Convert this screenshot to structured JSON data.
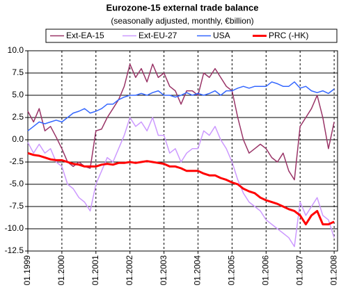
{
  "chart_data": {
    "type": "line",
    "title": "Eurozone-15 external trade balance",
    "subtitle": "(seasonally adjusted, monthly, €billion)",
    "x": [
      1999,
      1999.167,
      1999.333,
      1999.5,
      1999.667,
      1999.833,
      2000,
      2000.167,
      2000.333,
      2000.5,
      2000.667,
      2000.833,
      2001,
      2001.167,
      2001.333,
      2001.5,
      2001.667,
      2001.833,
      2002,
      2002.167,
      2002.333,
      2002.5,
      2002.667,
      2002.833,
      2003,
      2003.167,
      2003.333,
      2003.5,
      2003.667,
      2003.833,
      2004,
      2004.167,
      2004.333,
      2004.5,
      2004.667,
      2004.833,
      2005,
      2005.167,
      2005.333,
      2005.5,
      2005.667,
      2005.833,
      2006,
      2006.167,
      2006.333,
      2006.5,
      2006.667,
      2006.833,
      2007,
      2007.167,
      2007.333,
      2007.5,
      2007.667,
      2007.833,
      2008
    ],
    "series": [
      {
        "name": "Ext-EA-15",
        "color": "#993366",
        "width": 1.5,
        "values": [
          3.2,
          2.0,
          3.5,
          1.0,
          1.5,
          0.3,
          -1.0,
          -2.5,
          -3.0,
          -2.5,
          -3.0,
          -3.2,
          1.0,
          1.2,
          2.5,
          3.5,
          4.5,
          6.0,
          8.5,
          7.0,
          8.0,
          6.5,
          8.5,
          7.0,
          7.5,
          6.0,
          5.5,
          4.0,
          5.5,
          5.5,
          5.0,
          7.5,
          7.0,
          8.0,
          7.0,
          6.0,
          5.5,
          2.5,
          0.0,
          -1.5,
          -1.0,
          -0.5,
          -1.0,
          -2.0,
          -2.5,
          -1.5,
          -3.5,
          -4.5,
          1.5,
          2.5,
          3.5,
          5.0,
          2.5,
          -1.0,
          2.0
        ]
      },
      {
        "name": "Ext-EU-27",
        "color": "#cc99ff",
        "width": 1.5,
        "values": [
          -0.3,
          -1.5,
          -0.5,
          -1.5,
          -1.0,
          -2.5,
          -3.0,
          -5.0,
          -5.5,
          -6.5,
          -7.0,
          -8.0,
          -5.0,
          -3.5,
          -2.0,
          -2.5,
          -1.0,
          0.5,
          2.5,
          1.5,
          2.0,
          1.0,
          2.5,
          0.5,
          0.5,
          -1.5,
          -1.0,
          -2.5,
          -1.5,
          -1.0,
          -1.0,
          1.0,
          0.5,
          1.5,
          0.0,
          -1.0,
          -2.5,
          -4.5,
          -6.0,
          -7.0,
          -7.5,
          -8.0,
          -9.0,
          -9.5,
          -10.0,
          -10.5,
          -11.0,
          -12.0,
          -7.0,
          -8.5,
          -7.5,
          -6.5,
          -8.5,
          -9.0,
          -11.0
        ]
      },
      {
        "name": "USA",
        "color": "#3366ff",
        "width": 1.5,
        "values": [
          1.0,
          1.5,
          2.0,
          1.8,
          2.0,
          2.2,
          2.0,
          2.5,
          3.0,
          3.2,
          3.5,
          3.0,
          3.2,
          3.5,
          4.0,
          4.0,
          4.5,
          4.8,
          5.0,
          5.0,
          5.2,
          5.0,
          5.3,
          5.5,
          5.0,
          5.0,
          4.8,
          5.0,
          5.3,
          5.0,
          5.2,
          5.0,
          5.2,
          5.5,
          5.0,
          5.5,
          5.5,
          5.8,
          6.0,
          5.8,
          6.0,
          6.0,
          6.0,
          6.5,
          6.3,
          6.0,
          6.0,
          6.5,
          5.8,
          6.0,
          5.5,
          5.3,
          5.5,
          5.2,
          5.7
        ]
      },
      {
        "name": "PRC (-HK)",
        "color": "#ff0000",
        "width": 3,
        "values": [
          -1.5,
          -1.7,
          -1.8,
          -2.0,
          -2.2,
          -2.3,
          -2.3,
          -2.5,
          -2.7,
          -2.8,
          -3.0,
          -3.0,
          -3.0,
          -2.8,
          -2.7,
          -2.8,
          -2.6,
          -2.6,
          -2.5,
          -2.6,
          -2.5,
          -2.4,
          -2.5,
          -2.6,
          -2.7,
          -3.0,
          -3.0,
          -3.2,
          -3.5,
          -3.5,
          -3.5,
          -3.8,
          -4.0,
          -4.0,
          -4.3,
          -4.5,
          -4.8,
          -5.0,
          -5.5,
          -5.8,
          -6.0,
          -6.5,
          -6.8,
          -7.0,
          -7.2,
          -7.5,
          -7.8,
          -8.0,
          -8.5,
          -9.5,
          -8.5,
          -8.0,
          -9.5,
          -9.5,
          -9.2
        ]
      }
    ],
    "xlim": [
      1999,
      2008.1
    ],
    "xticks": [
      {
        "value": 1999,
        "label": "01.1999"
      },
      {
        "value": 2000,
        "label": "01.2000"
      },
      {
        "value": 2001,
        "label": "01.2001"
      },
      {
        "value": 2002,
        "label": "01.2002"
      },
      {
        "value": 2003,
        "label": "01.2003"
      },
      {
        "value": 2004,
        "label": "01.2004"
      },
      {
        "value": 2005,
        "label": "01.2005"
      },
      {
        "value": 2006,
        "label": "01.2006"
      },
      {
        "value": 2007,
        "label": "01.2007"
      },
      {
        "value": 2008,
        "label": "01.2008"
      }
    ],
    "ylim": [
      -12.5,
      10
    ],
    "yticks": [
      {
        "value": 10,
        "label": "10.0"
      },
      7.5,
      {
        "value": 5,
        "label": "5.0"
      },
      2.5,
      {
        "value": 0,
        "label": "0.0"
      },
      -2.5,
      {
        "value": -5,
        "label": "-5.0"
      },
      -7.5,
      {
        "value": -10,
        "label": "-10.0"
      },
      -12.5
    ],
    "grid": true
  }
}
